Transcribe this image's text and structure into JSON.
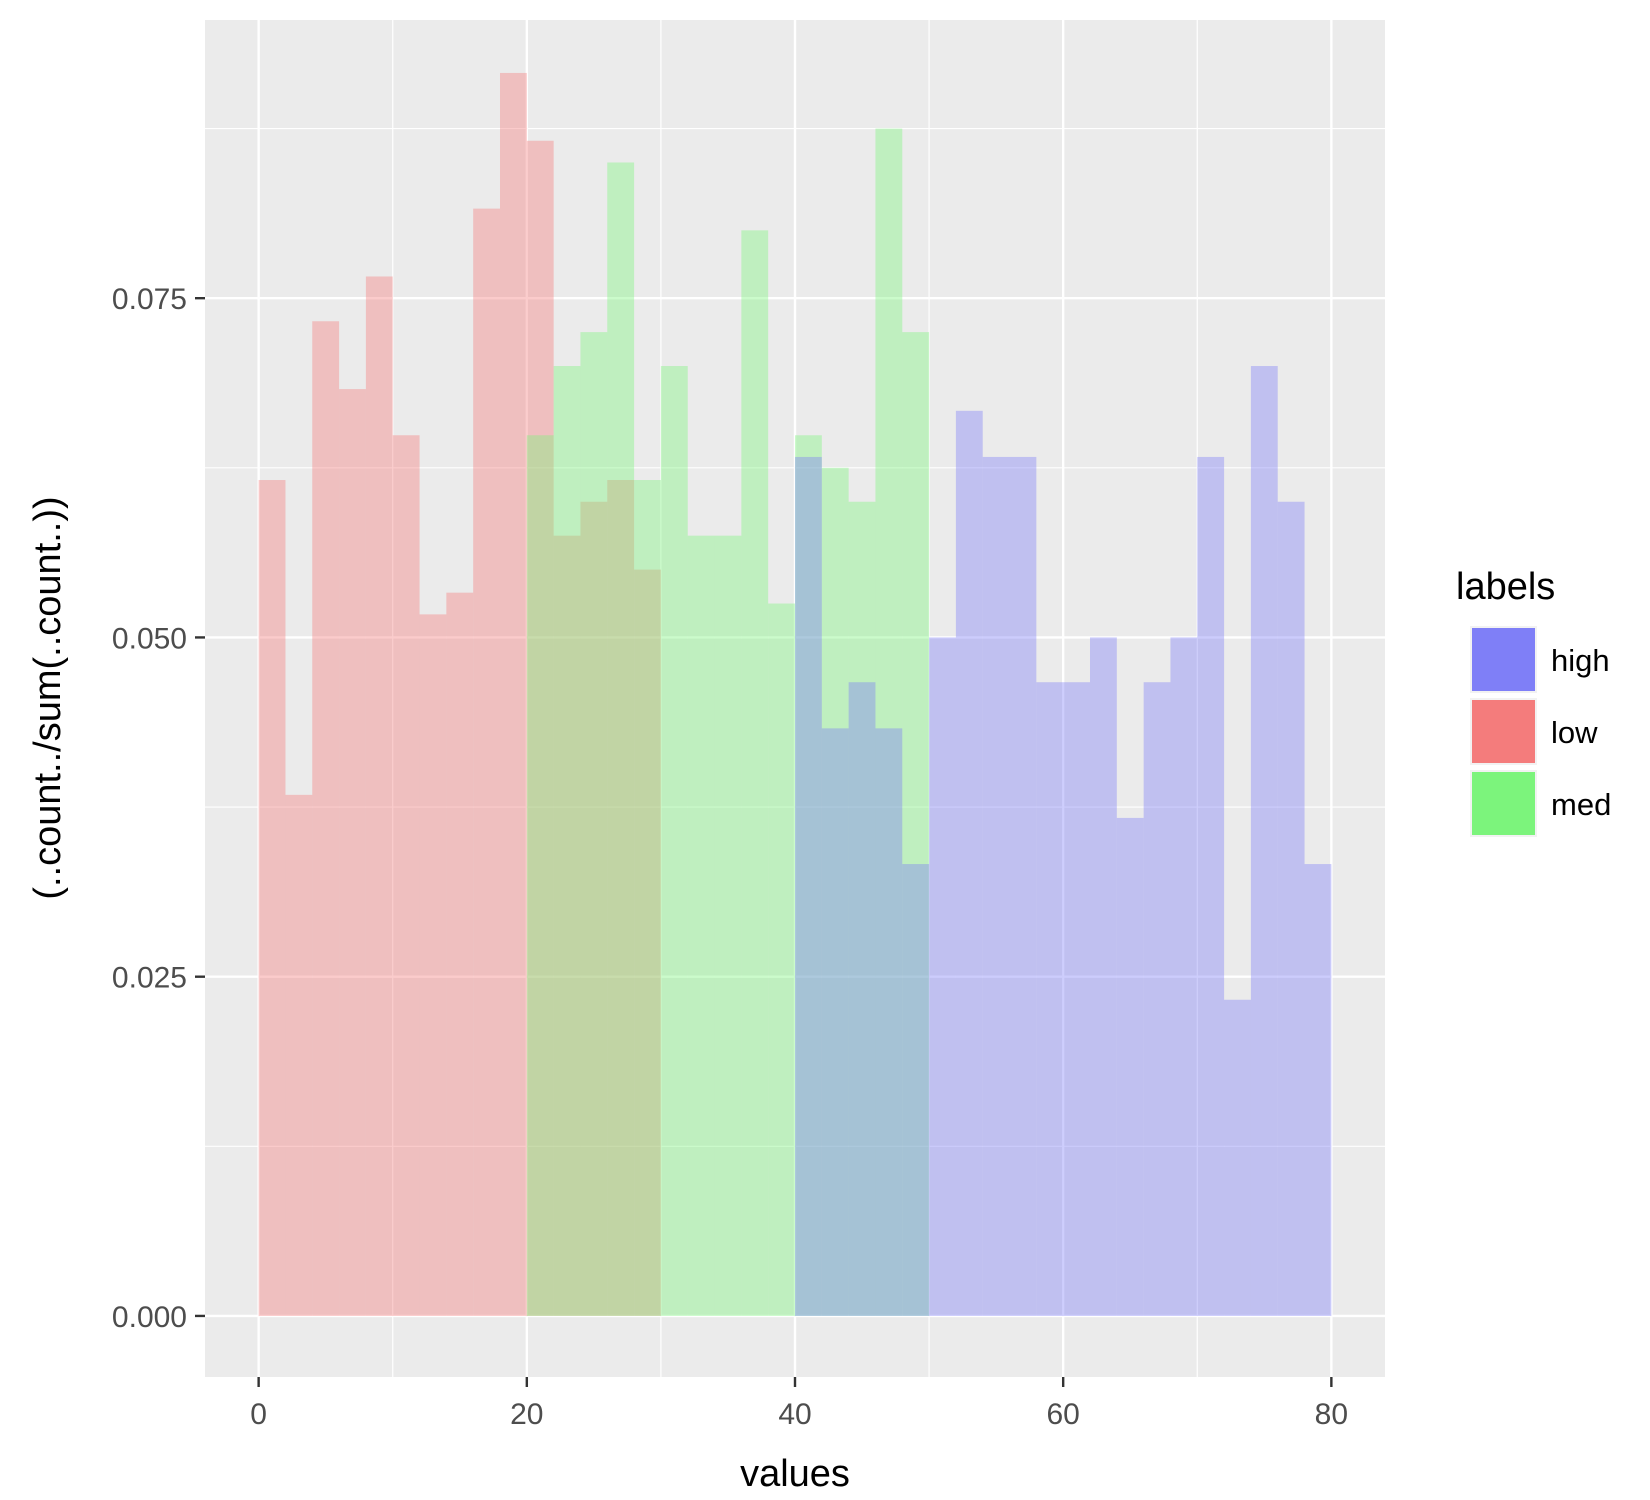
{
  "chart_data": {
    "type": "bar",
    "xlabel": "values",
    "ylabel": "(..count../sum(..count..))",
    "xlim": [
      -4,
      84
    ],
    "ylim": [
      -0.0045,
      0.0955
    ],
    "x_ticks": [
      0,
      20,
      40,
      60,
      80
    ],
    "y_ticks": [
      0.0,
      0.025,
      0.05,
      0.075
    ],
    "y_tick_labels": [
      "0.000",
      "0.025",
      "0.050",
      "0.075"
    ],
    "grid": true,
    "bin_width": 2,
    "legend": {
      "title": "labels",
      "position": "right",
      "entries": [
        {
          "name": "high",
          "color": "#7f7ff7"
        },
        {
          "name": "low",
          "color": "#f47c7c"
        },
        {
          "name": "med",
          "color": "#7cf47c"
        }
      ]
    },
    "series": [
      {
        "name": "low",
        "color": "#f47c7c",
        "opacity": 0.4,
        "bins_start": [
          0,
          2,
          4,
          6,
          8,
          10,
          12,
          14,
          16,
          18,
          20,
          22,
          24,
          26,
          28
        ],
        "values": [
          0.0616,
          0.0384,
          0.0733,
          0.0683,
          0.0766,
          0.0649,
          0.0517,
          0.0533,
          0.0816,
          0.0916,
          0.0866,
          0.0575,
          0.06,
          0.0616,
          0.055
        ]
      },
      {
        "name": "med",
        "color": "#7cf47c",
        "opacity": 0.4,
        "bins_start": [
          20,
          22,
          24,
          26,
          28,
          30,
          32,
          34,
          36,
          38,
          40,
          42,
          44,
          46,
          48
        ],
        "values": [
          0.0649,
          0.07,
          0.0725,
          0.085,
          0.0616,
          0.07,
          0.0575,
          0.0575,
          0.08,
          0.0525,
          0.0649,
          0.0625,
          0.06,
          0.0875,
          0.0725
        ]
      },
      {
        "name": "high",
        "color": "#7f7ff7",
        "opacity": 0.4,
        "bins_start": [
          40,
          42,
          44,
          46,
          48,
          50,
          52,
          54,
          56,
          58,
          60,
          62,
          64,
          66,
          68,
          70,
          72,
          74,
          76,
          78
        ],
        "values": [
          0.0633,
          0.0433,
          0.0467,
          0.0433,
          0.0333,
          0.05,
          0.0667,
          0.0633,
          0.0633,
          0.0467,
          0.0467,
          0.05,
          0.0367,
          0.0467,
          0.05,
          0.0633,
          0.0233,
          0.07,
          0.06,
          0.0333
        ]
      }
    ]
  }
}
